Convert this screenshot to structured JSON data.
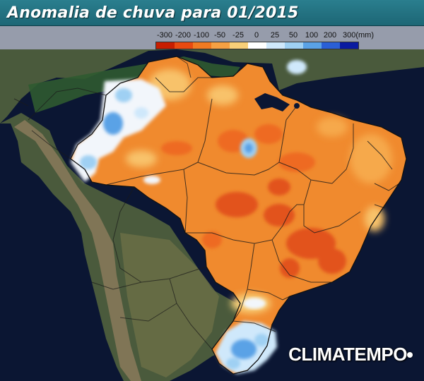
{
  "header": {
    "title": "Anomalia de chuva para 01/2015"
  },
  "legend": {
    "labels": [
      "-300",
      "-200",
      "-100",
      "-50",
      "-25",
      "0",
      "25",
      "50",
      "100",
      "200",
      "300(mm)"
    ],
    "colors": [
      "#c81e00",
      "#e84a10",
      "#f07a22",
      "#f5a043",
      "#f8cf78",
      "#ffffff",
      "#cfe8fb",
      "#9fd0f3",
      "#5aa2e6",
      "#2a5fd6",
      "#0a1aa0"
    ]
  },
  "map": {
    "ocean_color": "#0b1633",
    "land_color": "#3a4a36"
  },
  "brand": {
    "name": "CLIMATEMPO"
  }
}
